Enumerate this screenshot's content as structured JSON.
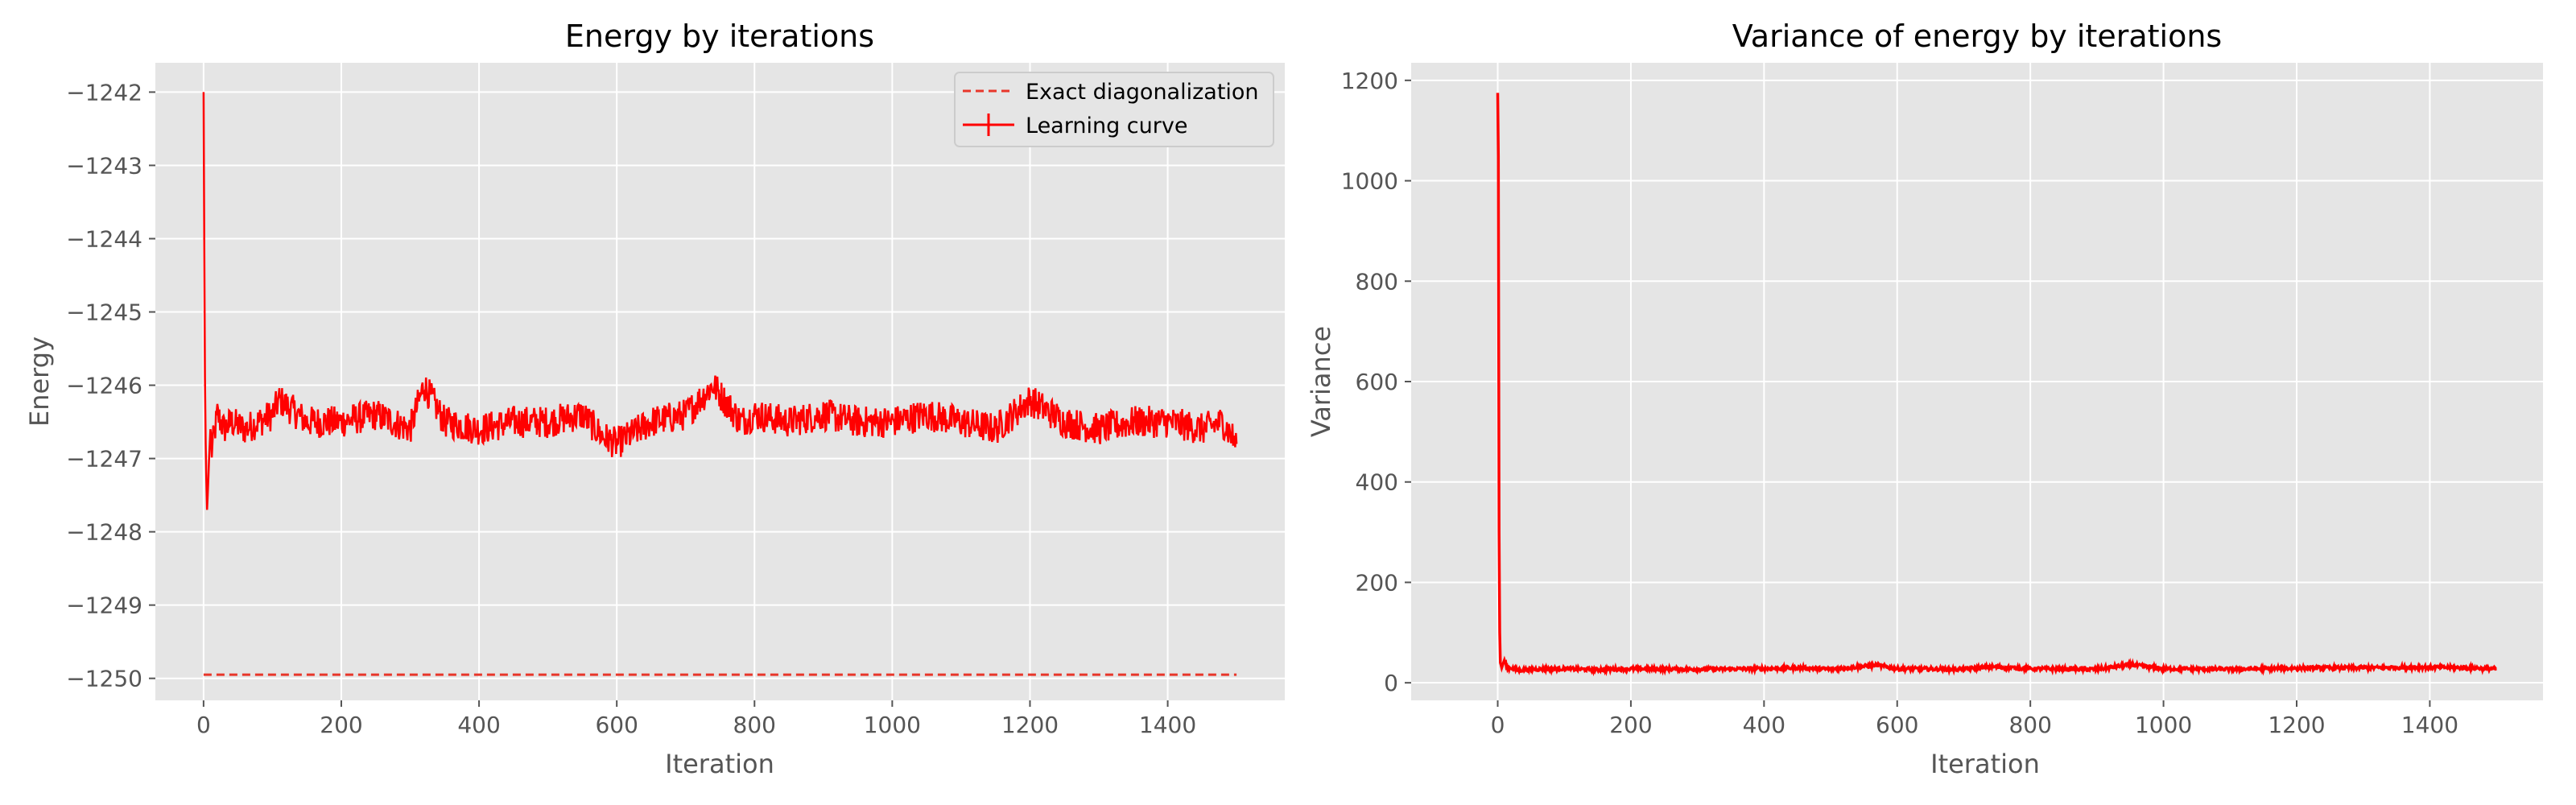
{
  "chart_data": [
    {
      "type": "line",
      "title": "Energy by iterations",
      "xlabel": "Iteration",
      "ylabel": "Energy",
      "xlim": [
        -70,
        1570
      ],
      "ylim": [
        -1250.3,
        -1241.6
      ],
      "xticks": [
        0,
        200,
        400,
        600,
        800,
        1000,
        1200,
        1400
      ],
      "yticks": [
        -1242,
        -1243,
        -1244,
        -1245,
        -1246,
        -1247,
        -1248,
        -1249,
        -1250
      ],
      "grid": true,
      "legend": {
        "placement": "top-right",
        "entries": [
          "Exact diagonalization",
          "Learning curve"
        ]
      },
      "series": [
        {
          "name": "Exact diagonalization",
          "style": "dashed",
          "color": "#e8362a",
          "x": [
            0,
            1500
          ],
          "y": [
            -1249.95,
            -1249.95
          ]
        },
        {
          "name": "Learning curve",
          "style": "solid-errorbar",
          "color": "#ff0000",
          "x": [
            0,
            1,
            2,
            3,
            4,
            5,
            6,
            8,
            10,
            12,
            15,
            20,
            30,
            40,
            60,
            80,
            100,
            110,
            150,
            200,
            250,
            300,
            320,
            350,
            400,
            450,
            500,
            550,
            580,
            600,
            650,
            700,
            740,
            780,
            800,
            850,
            900,
            950,
            1000,
            1050,
            1100,
            1150,
            1200,
            1250,
            1300,
            1350,
            1400,
            1450,
            1480,
            1500
          ],
          "y": [
            -1242.0,
            -1244.0,
            -1245.9,
            -1246.8,
            -1247.3,
            -1247.7,
            -1247.5,
            -1247.0,
            -1246.6,
            -1246.9,
            -1246.7,
            -1246.4,
            -1246.6,
            -1246.5,
            -1246.6,
            -1246.5,
            -1246.4,
            -1246.2,
            -1246.5,
            -1246.5,
            -1246.4,
            -1246.6,
            -1246.0,
            -1246.5,
            -1246.6,
            -1246.5,
            -1246.5,
            -1246.4,
            -1246.7,
            -1246.8,
            -1246.5,
            -1246.4,
            -1246.0,
            -1246.5,
            -1246.4,
            -1246.5,
            -1246.4,
            -1246.5,
            -1246.5,
            -1246.4,
            -1246.5,
            -1246.6,
            -1246.2,
            -1246.5,
            -1246.6,
            -1246.5,
            -1246.5,
            -1246.6,
            -1246.5,
            -1246.8
          ]
        }
      ]
    },
    {
      "type": "line",
      "title": "Variance of energy by iterations",
      "xlabel": "Iteration",
      "ylabel": "Variance",
      "xlim": [
        -130,
        1570
      ],
      "ylim": [
        -35,
        1235
      ],
      "xticks": [
        0,
        200,
        400,
        600,
        800,
        1000,
        1200,
        1400
      ],
      "yticks": [
        0,
        200,
        400,
        600,
        800,
        1000,
        1200
      ],
      "grid": true,
      "series": [
        {
          "color": "#ff0000",
          "style": "solid",
          "x": [
            0,
            1,
            2,
            3,
            4,
            6,
            10,
            15,
            20,
            30,
            50,
            100,
            150,
            200,
            300,
            400,
            450,
            500,
            570,
            600,
            700,
            740,
            800,
            900,
            950,
            1000,
            1100,
            1200,
            1300,
            1400,
            1450,
            1500
          ],
          "y": [
            1175,
            1050,
            300,
            100,
            40,
            30,
            45,
            28,
            30,
            25,
            27,
            28,
            26,
            28,
            27,
            28,
            30,
            27,
            35,
            28,
            27,
            32,
            28,
            27,
            36,
            28,
            27,
            29,
            30,
            31,
            30,
            28
          ]
        }
      ]
    }
  ]
}
